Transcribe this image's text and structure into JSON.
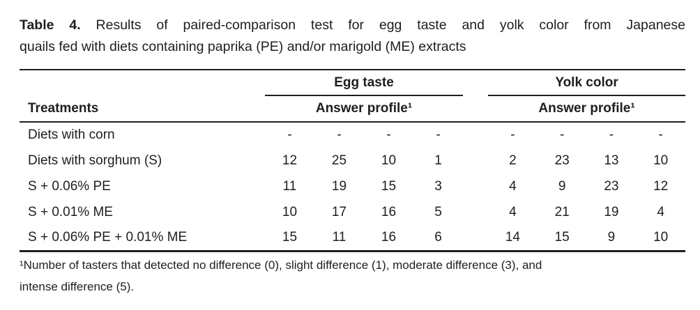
{
  "caption": {
    "label": "Table 4.",
    "line1_rest": "Results of paired-comparison test for egg taste and yolk color from Japanese",
    "line2": "quails fed with diets containing paprika (PE) and/or marigold (ME) extracts"
  },
  "table": {
    "row_header": "Treatments",
    "groups": [
      {
        "label": "Egg taste",
        "subheader": "Answer profile¹"
      },
      {
        "label": "Yolk color",
        "subheader": "Answer profile¹"
      }
    ],
    "rows": [
      {
        "treatment": "Diets with corn",
        "egg_taste": [
          "-",
          "-",
          "-",
          "-"
        ],
        "yolk_color": [
          "-",
          "-",
          "-",
          "-"
        ]
      },
      {
        "treatment": "Diets with sorghum (S)",
        "egg_taste": [
          "12",
          "25",
          "10",
          "1"
        ],
        "yolk_color": [
          "2",
          "23",
          "13",
          "10"
        ]
      },
      {
        "treatment": "S + 0.06% PE",
        "egg_taste": [
          "11",
          "19",
          "15",
          "3"
        ],
        "yolk_color": [
          "4",
          "9",
          "23",
          "12"
        ]
      },
      {
        "treatment": "S + 0.01% ME",
        "egg_taste": [
          "10",
          "17",
          "16",
          "5"
        ],
        "yolk_color": [
          "4",
          "21",
          "19",
          "4"
        ]
      },
      {
        "treatment": "S + 0.06% PE + 0.01% ME",
        "egg_taste": [
          "15",
          "11",
          "16",
          "6"
        ],
        "yolk_color": [
          "14",
          "15",
          "9",
          "10"
        ]
      }
    ]
  },
  "footnote": {
    "line1": "¹Number of tasters that detected no difference (0), slight difference (1), moderate difference (3), and",
    "line2": "intense difference (5)."
  },
  "colors": {
    "text": "#1e1e1c",
    "rule": "#1e1e1c",
    "background": "#ffffff"
  }
}
